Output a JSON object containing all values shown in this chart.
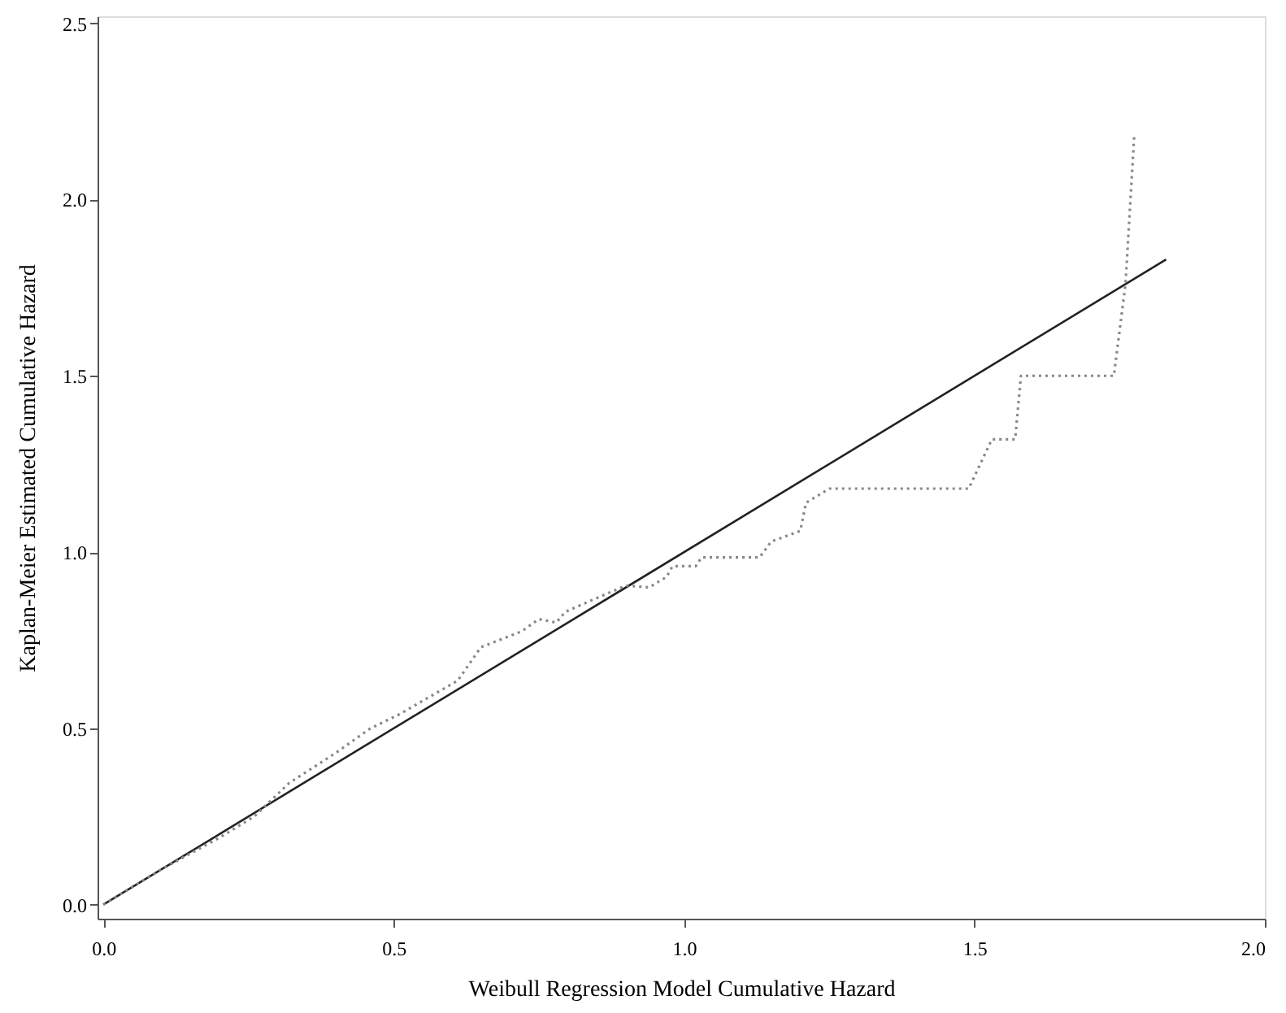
{
  "chart_data": {
    "type": "line",
    "xlabel": "Weibull Regression Model Cumulative Hazard",
    "ylabel": "Kaplan-Meier Estimated Cumulative Hazard",
    "xlim": [
      -0.01,
      2.0
    ],
    "ylim": [
      -0.04,
      2.52
    ],
    "xticks": [
      {
        "value": 0,
        "label": "0.0"
      },
      0.5,
      {
        "value": 1,
        "label": "1.0"
      },
      1.5,
      {
        "value": 2,
        "label": "2.0"
      }
    ],
    "yticks": [
      {
        "value": 0,
        "label": "0.0"
      },
      0.5,
      {
        "value": 1,
        "label": "1.0"
      },
      1.5,
      {
        "value": 2,
        "label": "2.0"
      },
      2.5
    ],
    "grid": false,
    "marker": "none",
    "series": [
      {
        "color": "#222222",
        "line_style": "solid",
        "x": [
          0,
          1.83
        ],
        "values": [
          0,
          1.83
        ]
      },
      {
        "color": "#888888",
        "line_style": "dotted",
        "x": [
          0,
          0.1,
          0.2,
          0.26,
          0.32,
          0.4,
          0.46,
          0.51,
          0.61,
          0.65,
          0.72,
          0.75,
          0.78,
          0.795,
          0.85,
          0.9,
          0.94,
          0.97,
          0.98,
          1.02,
          1.03,
          1.13,
          1.15,
          1.2,
          1.21,
          1.25,
          1.49,
          1.53,
          1.57,
          1.58,
          1.74,
          1.76,
          1.775
        ],
        "values": [
          0,
          0.1,
          0.19,
          0.25,
          0.345,
          0.43,
          0.5,
          0.54,
          0.635,
          0.73,
          0.775,
          0.81,
          0.8,
          0.83,
          0.87,
          0.905,
          0.9,
          0.93,
          0.96,
          0.96,
          0.985,
          0.985,
          1.03,
          1.06,
          1.14,
          1.18,
          1.18,
          1.32,
          1.32,
          1.5,
          1.5,
          1.76,
          2.18
        ]
      }
    ]
  }
}
